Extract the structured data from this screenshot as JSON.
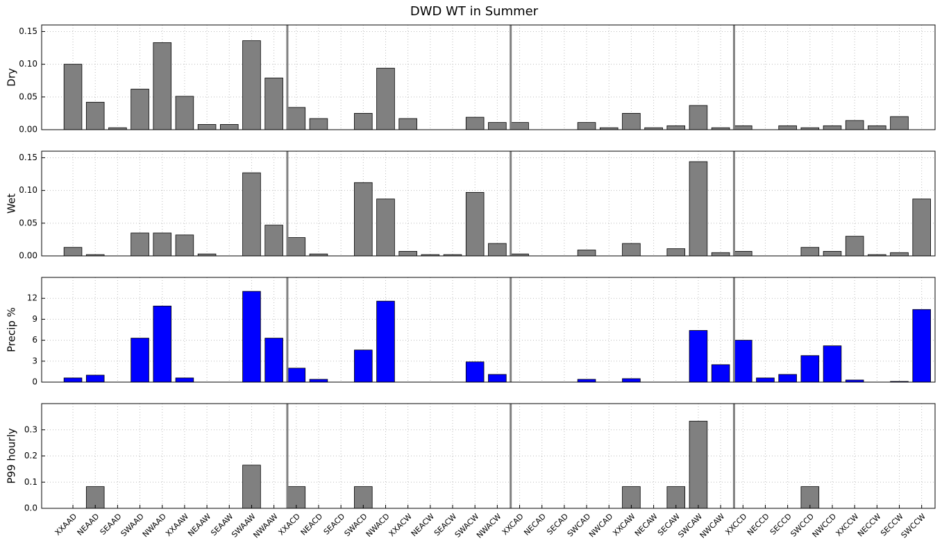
{
  "chart_data": [
    {
      "type": "bar",
      "title": "DWD WT in Summer",
      "ylabel": "Dry",
      "color": "#808080",
      "grid": true,
      "ylim": [
        0,
        0.16
      ],
      "yticks": [
        {
          "value": 0,
          "label": "0.00"
        },
        0.05,
        {
          "value": 0.1,
          "label": "0.10"
        },
        0.15
      ],
      "values": [
        0.1,
        0.042,
        0.003,
        0.062,
        0.133,
        0.051,
        0.008,
        0.008,
        0.136,
        0.079,
        0.034,
        0.017,
        0,
        0.025,
        0.094,
        0.017,
        0,
        0,
        0.019,
        0.011,
        0.011,
        0,
        0,
        0.011,
        0.003,
        0.025,
        0.003,
        0.006,
        0.037,
        0.003,
        0.006,
        0,
        0.006,
        0.003,
        0.006,
        0.014,
        0.006,
        0.02,
        0
      ]
    },
    {
      "type": "bar",
      "ylabel": "Wet",
      "color": "#808080",
      "grid": true,
      "ylim": [
        0,
        0.16
      ],
      "yticks": [
        {
          "value": 0,
          "label": "0.00"
        },
        0.05,
        {
          "value": 0.1,
          "label": "0.10"
        },
        0.15
      ],
      "values": [
        0.013,
        0.002,
        0,
        0.035,
        0.035,
        0.032,
        0.003,
        0,
        0.127,
        0.047,
        0.028,
        0.003,
        0,
        0.112,
        0.087,
        0.007,
        0.002,
        0.002,
        0.097,
        0.019,
        0.003,
        0,
        0,
        0.009,
        0,
        0.019,
        0,
        0.011,
        0.144,
        0.005,
        0.007,
        0,
        0,
        0.013,
        0.007,
        0.03,
        0.002,
        0.005,
        0.087
      ]
    },
    {
      "type": "bar",
      "ylabel": "Precip %",
      "color": "#0000ff",
      "grid": true,
      "ylim": [
        0,
        15
      ],
      "yticks": [
        0,
        3,
        6,
        9,
        12
      ],
      "values": [
        0.6,
        1.0,
        0,
        6.3,
        10.9,
        0.6,
        0,
        0,
        13.0,
        6.3,
        2.0,
        0.4,
        0,
        4.6,
        11.6,
        0,
        0,
        0,
        2.9,
        1.1,
        0,
        0,
        0,
        0.4,
        0,
        0.5,
        0,
        0,
        7.4,
        2.5,
        6.0,
        0.6,
        1.1,
        3.8,
        5.2,
        0.3,
        0,
        0.1,
        10.4
      ]
    },
    {
      "type": "bar",
      "ylabel": "P99 hourly",
      "color": "#808080",
      "grid": true,
      "ylim": [
        0,
        0.4
      ],
      "yticks": [
        {
          "value": 0,
          "label": "0.0"
        },
        0.1,
        0.2,
        0.3
      ],
      "categories": [
        "XXAAD",
        "NEAAD",
        "SEAAD",
        "SWAAD",
        "NWAAD",
        "XXAAW",
        "NEAAW",
        "SEAAW",
        "SWAAW",
        "NWAAW",
        "XXACD",
        "NEACD",
        "SEACD",
        "SWACD",
        "NWACD",
        "XXACW",
        "NEACW",
        "SEACW",
        "SWACW",
        "NWACW",
        "XXCAD",
        "NECAD",
        "SECAD",
        "SWCAD",
        "NWCAD",
        "XXCAW",
        "NECAW",
        "SECAW",
        "SWCAW",
        "NWCAW",
        "XXCCD",
        "NECCD",
        "SECCD",
        "SWCCD",
        "NWCCD",
        "XXCCW",
        "NECCW",
        "SECCW",
        "SWCCW"
      ],
      "values": [
        0,
        0.083,
        0,
        0,
        0,
        0,
        0,
        0,
        0.165,
        0,
        0.083,
        0,
        0,
        0.083,
        0,
        0,
        0,
        0,
        0,
        0,
        0,
        0,
        0,
        0,
        0,
        0.083,
        0,
        0.083,
        0.333,
        0,
        0,
        0,
        0,
        0.083,
        0,
        0,
        0,
        0,
        0
      ]
    }
  ]
}
